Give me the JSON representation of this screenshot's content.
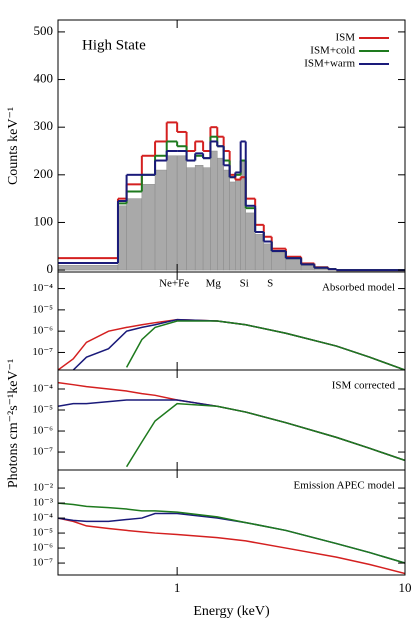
{
  "chart_data": [
    {
      "type": "histogram",
      "annotation": "High State",
      "ylabel": "Counts keV⁻¹",
      "xlim": [
        0.3,
        10
      ],
      "ylim": [
        -4,
        525
      ],
      "yticks": [
        0,
        100,
        200,
        300,
        400,
        500
      ],
      "legend": "top-right",
      "bins": [
        0.3,
        0.55,
        0.6,
        0.7,
        0.8,
        0.9,
        1.0,
        1.1,
        1.2,
        1.3,
        1.4,
        1.5,
        1.6,
        1.7,
        1.8,
        1.9,
        2.0,
        2.2,
        2.4,
        2.6,
        3.0,
        3.5,
        4.0,
        4.6,
        5.0,
        10
      ],
      "histogram": {
        "color": "#a9a9a9",
        "values": [
          10,
          135,
          150,
          180,
          210,
          240,
          240,
          215,
          220,
          215,
          250,
          235,
          210,
          185,
          190,
          230,
          120,
          75,
          55,
          38,
          24,
          11,
          5,
          2,
          0
        ]
      },
      "series": [
        {
          "name": "ISM",
          "color": "#d42020",
          "values": [
            25,
            150,
            180,
            240,
            270,
            310,
            290,
            250,
            270,
            250,
            300,
            280,
            250,
            200,
            190,
            195,
            150,
            95,
            70,
            45,
            28,
            14,
            6,
            2,
            0
          ]
        },
        {
          "name": "ISM+cold",
          "color": "#1e7a1e",
          "values": [
            15,
            140,
            165,
            200,
            240,
            270,
            260,
            230,
            240,
            235,
            280,
            260,
            230,
            195,
            200,
            230,
            130,
            80,
            60,
            40,
            25,
            12,
            5,
            2,
            0
          ]
        },
        {
          "name": "ISM+warm",
          "color": "#1a1a7a",
          "values": [
            15,
            145,
            200,
            200,
            230,
            250,
            250,
            230,
            245,
            235,
            270,
            260,
            220,
            195,
            205,
            270,
            135,
            80,
            60,
            40,
            25,
            12,
            5,
            2,
            0
          ]
        }
      ]
    },
    {
      "type": "line",
      "annotation": "Absorbed model",
      "ylog": true,
      "xlim": [
        0.3,
        10
      ],
      "ylim": [
        1.5e-08,
        0.0006
      ],
      "yticks": [
        {
          "value": 0.0001,
          "label": "10⁻⁴"
        },
        {
          "value": 1e-05,
          "label": "10⁻⁵"
        },
        {
          "value": 1e-06,
          "label": "10⁻⁶"
        },
        {
          "value": 1e-07,
          "label": "10⁻⁷"
        }
      ],
      "line_labels": [
        {
          "value": 0.97,
          "label": "Ne+Fe"
        },
        {
          "value": 1.44,
          "label": "Mg"
        },
        {
          "value": 1.97,
          "label": "Si"
        },
        {
          "value": 2.56,
          "label": "S"
        }
      ],
      "x": [
        0.3,
        0.35,
        0.4,
        0.5,
        0.6,
        0.7,
        0.8,
        1,
        1.5,
        2,
        3,
        5,
        7,
        10
      ],
      "series": [
        {
          "color": "#d42020",
          "values": [
            1.5e-08,
            5e-08,
            3e-07,
            1e-06,
            1.5e-06,
            2e-06,
            2.5e-06,
            3.5e-06,
            3e-06,
            2e-06,
            8e-07,
            2e-07,
            6e-08,
            1.5e-08
          ]
        },
        {
          "color": "#1a1a7a",
          "values": [
            null,
            1.5e-08,
            6e-08,
            1.5e-07,
            1e-06,
            1.5e-06,
            2e-06,
            3.5e-06,
            3e-06,
            2e-06,
            8e-07,
            2e-07,
            6e-08,
            1.5e-08
          ]
        },
        {
          "color": "#1e7a1e",
          "values": [
            null,
            null,
            null,
            null,
            2e-08,
            4e-07,
            1.5e-06,
            3e-06,
            3e-06,
            2e-06,
            8e-07,
            2e-07,
            6e-08,
            1.5e-08
          ]
        }
      ]
    },
    {
      "type": "line",
      "annotation": "ISM corrected",
      "ylabel": "Photons cm⁻²s⁻¹keV⁻¹",
      "ylog": true,
      "xlim": [
        0.3,
        10
      ],
      "ylim": [
        1.4e-08,
        0.0008
      ],
      "yticks": [
        {
          "value": 0.0001,
          "label": "10⁻⁴"
        },
        {
          "value": 1e-05,
          "label": "10⁻⁵"
        },
        {
          "value": 1e-06,
          "label": "10⁻⁶"
        },
        {
          "value": 1e-07,
          "label": "10⁻⁷"
        }
      ],
      "x": [
        0.3,
        0.35,
        0.4,
        0.5,
        0.6,
        0.7,
        0.8,
        1,
        1.5,
        2,
        3,
        5,
        7,
        10
      ],
      "series": [
        {
          "color": "#d42020",
          "values": [
            0.0002,
            0.00016,
            0.00013,
            0.0001,
            8e-05,
            6e-05,
            5e-05,
            3e-05,
            1.5e-05,
            8e-06,
            2.5e-06,
            5e-07,
            1.5e-07,
            4e-08
          ]
        },
        {
          "color": "#1a1a7a",
          "values": [
            1.5e-05,
            2e-05,
            2e-05,
            2.5e-05,
            3e-05,
            3e-05,
            3e-05,
            3e-05,
            1.5e-05,
            8e-06,
            2.5e-06,
            5e-07,
            1.5e-07,
            4e-08
          ]
        },
        {
          "color": "#1e7a1e",
          "values": [
            null,
            null,
            null,
            null,
            2e-08,
            3e-07,
            3e-06,
            2e-05,
            1.5e-05,
            8e-06,
            2.5e-06,
            5e-07,
            1.5e-07,
            4e-08
          ]
        }
      ]
    },
    {
      "type": "line",
      "annotation": "Emission APEC model",
      "xlabel": "Energy (keV)",
      "ylog": true,
      "xlim": [
        0.3,
        10
      ],
      "ylim": [
        1.6e-08,
        0.16
      ],
      "xticks": [
        1,
        10
      ],
      "yticks": [
        {
          "value": 0.01,
          "label": "10⁻²"
        },
        {
          "value": 0.001,
          "label": "10⁻³"
        },
        {
          "value": 0.0001,
          "label": "10⁻⁴"
        },
        {
          "value": 1e-05,
          "label": "10⁻⁵"
        },
        {
          "value": 1e-06,
          "label": "10⁻⁶"
        },
        {
          "value": 1e-07,
          "label": "10⁻⁷"
        }
      ],
      "x": [
        0.3,
        0.35,
        0.4,
        0.5,
        0.6,
        0.7,
        0.8,
        1,
        1.5,
        2,
        3,
        5,
        7,
        10
      ],
      "series": [
        {
          "color": "#d42020",
          "values": [
            0.0001,
            6e-05,
            3e-05,
            2e-05,
            1.5e-05,
            1.2e-05,
            1e-05,
            8e-06,
            5e-06,
            3e-06,
            1e-06,
            2.5e-07,
            8e-08,
            2e-08
          ]
        },
        {
          "color": "#1a1a7a",
          "values": [
            0.0001,
            7e-05,
            6e-05,
            6e-05,
            8e-05,
            0.0001,
            0.0002,
            0.0002,
            0.0001,
            5e-05,
            1.5e-05,
            2e-06,
            5e-07,
            1e-07
          ]
        },
        {
          "color": "#1e7a1e",
          "values": [
            0.001,
            0.0008,
            0.0006,
            0.0005,
            0.0004,
            0.0003,
            0.0003,
            0.00025,
            0.00012,
            5e-05,
            1.5e-05,
            2e-06,
            5e-07,
            1e-07
          ]
        }
      ]
    }
  ]
}
